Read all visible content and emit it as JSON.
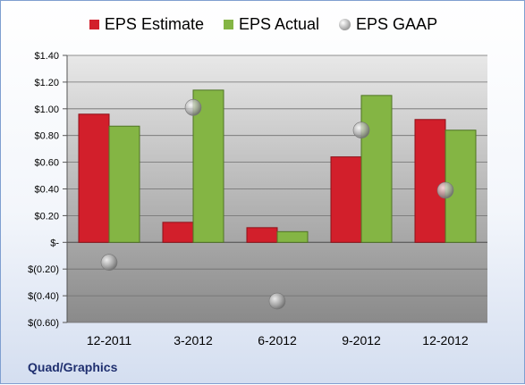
{
  "chart_data": {
    "type": "bar",
    "categories": [
      "12-2011",
      "3-2012",
      "6-2012",
      "9-2012",
      "12-2012"
    ],
    "series": [
      {
        "name": "EPS Estimate",
        "kind": "bar",
        "color": "#d21f2b",
        "values": [
          0.96,
          0.15,
          0.11,
          0.64,
          0.92
        ]
      },
      {
        "name": "EPS Actual",
        "kind": "bar",
        "color": "#84b544",
        "values": [
          0.87,
          1.14,
          0.08,
          1.1,
          0.84
        ]
      },
      {
        "name": "EPS GAAP",
        "kind": "scatter",
        "color": "#a9a9a9",
        "values": [
          -0.15,
          1.01,
          -0.44,
          0.84,
          0.39
        ]
      }
    ],
    "ylim": [
      -0.6,
      1.4
    ],
    "yticks": [
      1.4,
      1.2,
      1.0,
      0.8,
      0.6,
      0.4,
      0.2,
      0,
      -0.2,
      -0.4,
      -0.6
    ],
    "ytick_labels": [
      "$1.40",
      "$1.20",
      "$1.00",
      "$0.80",
      "$0.60",
      "$0.40",
      "$0.20",
      "$-",
      "$(0.20)",
      "$(0.40)",
      "$(0.60)"
    ],
    "grid": true,
    "legend_position": "top",
    "title": "",
    "xlabel": "",
    "ylabel": ""
  },
  "company_label": "Quad/Graphics"
}
